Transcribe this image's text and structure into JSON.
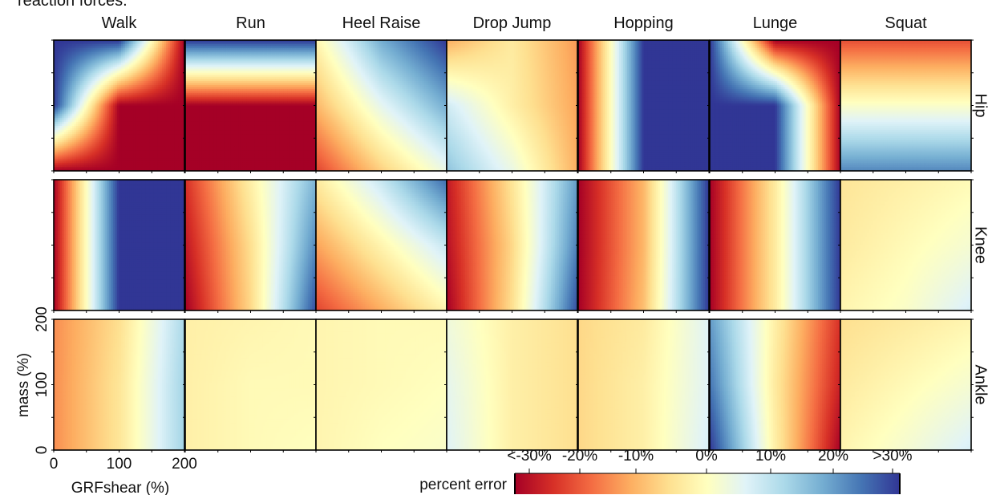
{
  "caption_fragment": "reaction forces.",
  "chart_data": {
    "type": "heatmap",
    "title": "",
    "columns": [
      "Walk",
      "Run",
      "Heel Raise",
      "Drop Jump",
      "Hopping",
      "Lunge",
      "Squat"
    ],
    "rows": [
      "Hip",
      "Knee",
      "Ankle"
    ],
    "xlabel": "GRFshear (%)",
    "ylabel": "mass (%)",
    "xlim": [
      0,
      200
    ],
    "ylim": [
      0,
      200
    ],
    "x_ticks": [
      "0",
      "100",
      "200"
    ],
    "y_ticks": [
      "0",
      "100",
      "200"
    ],
    "colorbar": {
      "label": "percent error",
      "tick_labels": [
        "<-30%",
        "-20%",
        "-10%",
        "0%",
        "10%",
        "20%",
        ">30%"
      ],
      "tick_values": [
        -30,
        -20,
        -10,
        0,
        10,
        20,
        30
      ],
      "range": [
        -30,
        30
      ],
      "colors": [
        "#a50026",
        "#d73027",
        "#f46d43",
        "#fdae61",
        "#fee090",
        "#ffffbf",
        "#e0f3f8",
        "#abd9e9",
        "#74add1",
        "#4575b4",
        "#313695"
      ]
    },
    "grids": {
      "note": "percent error at x = 0,100,200 (columns) and y = 200,100,0 (rows, top to bottom)",
      "Hip": {
        "Walk": [
          [
            30,
            30,
            -30
          ],
          [
            30,
            -30,
            -30
          ],
          [
            -30,
            -30,
            -30
          ]
        ],
        "Run": [
          [
            30,
            30,
            30
          ],
          [
            -30,
            -30,
            -30
          ],
          [
            -30,
            -30,
            -30
          ]
        ],
        "Heel Raise": [
          [
            -2,
            18,
            30
          ],
          [
            -11,
            5,
            18
          ],
          [
            -22,
            -8,
            4
          ]
        ],
        "Drop Jump": [
          [
            -12,
            -4,
            -14
          ],
          [
            8,
            -3,
            -13
          ],
          [
            15,
            4,
            -12
          ]
        ],
        "Hopping": [
          [
            -30,
            30,
            30
          ],
          [
            -30,
            30,
            30
          ],
          [
            -30,
            30,
            30
          ]
        ],
        "Lunge": [
          [
            30,
            -30,
            -30
          ],
          [
            30,
            30,
            -30
          ],
          [
            30,
            30,
            -30
          ]
        ],
        "Squat": [
          [
            -21,
            -21,
            -21
          ],
          [
            1,
            1,
            1
          ],
          [
            22,
            22,
            22
          ]
        ]
      },
      "Knee": {
        "Walk": [
          [
            -30,
            30,
            30
          ],
          [
            -30,
            30,
            30
          ],
          [
            -30,
            30,
            30
          ]
        ],
        "Run": [
          [
            -24,
            -3,
            17
          ],
          [
            -27,
            -6,
            22
          ],
          [
            -30,
            -7,
            28
          ]
        ],
        "Heel Raise": [
          [
            -4,
            9,
            25
          ],
          [
            -13,
            -2,
            9
          ],
          [
            -22,
            -12,
            -2
          ]
        ],
        "Drop Jump": [
          [
            -27,
            -5,
            20
          ],
          [
            -28,
            -7,
            23
          ],
          [
            -30,
            -6,
            28
          ]
        ],
        "Hopping": [
          [
            -30,
            -11,
            30
          ],
          [
            -30,
            -11,
            30
          ],
          [
            -30,
            -10,
            30
          ]
        ],
        "Lunge": [
          [
            -30,
            -4,
            30
          ],
          [
            -30,
            -4,
            30
          ],
          [
            -30,
            -4,
            30
          ]
        ],
        "Squat": [
          [
            -5,
            -3,
            -1
          ],
          [
            -4,
            -1,
            2
          ],
          [
            -2,
            1,
            7
          ]
        ]
      },
      "Ankle": {
        "Walk": [
          [
            -15,
            -6,
            12
          ],
          [
            -15,
            -5,
            13
          ],
          [
            -15,
            -5,
            13
          ]
        ],
        "Run": [
          [
            -3,
            -2,
            -1
          ],
          [
            -3,
            -1,
            -1
          ],
          [
            -3,
            -1,
            0
          ]
        ],
        "Heel Raise": [
          [
            -2,
            -1,
            -1
          ],
          [
            -2,
            -1,
            0
          ],
          [
            -2,
            0,
            1
          ]
        ],
        "Drop Jump": [
          [
            3,
            -3,
            -6
          ],
          [
            5,
            -3,
            -6
          ],
          [
            6,
            -3,
            -6
          ]
        ],
        "Hopping": [
          [
            -7,
            -4,
            6
          ],
          [
            -7,
            -3,
            6
          ],
          [
            -7,
            -3,
            7
          ]
        ],
        "Lunge": [
          [
            20,
            -3,
            -24
          ],
          [
            24,
            -4,
            -26
          ],
          [
            30,
            -3,
            -30
          ]
        ],
        "Squat": [
          [
            -6,
            -4,
            -2
          ],
          [
            -4,
            -1,
            2
          ],
          [
            -2,
            2,
            7
          ]
        ]
      }
    }
  }
}
